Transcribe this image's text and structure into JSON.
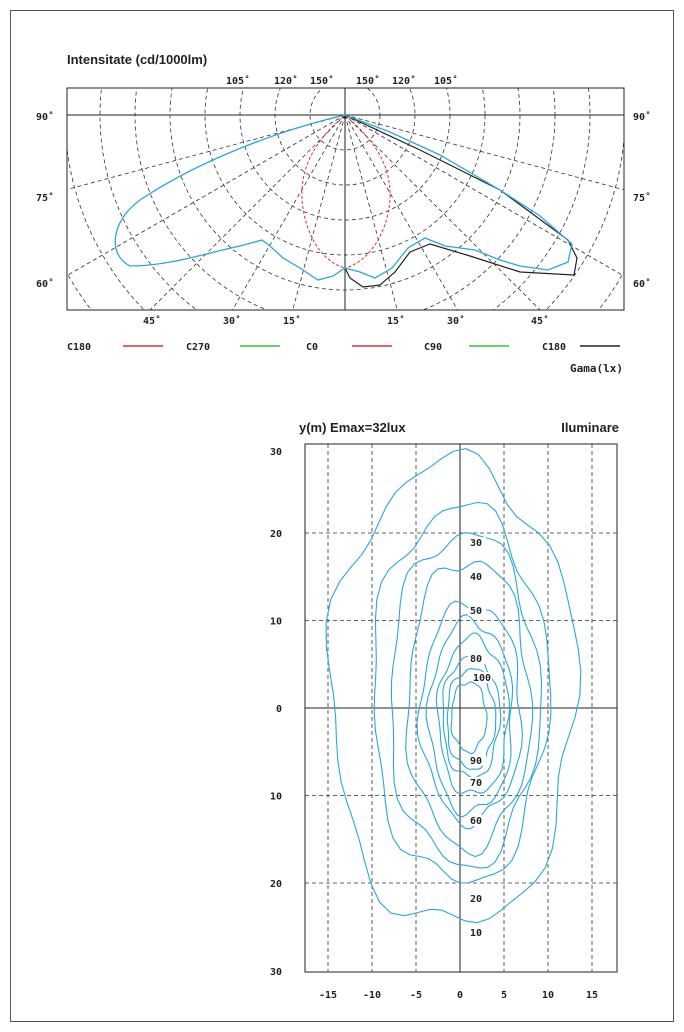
{
  "polar": {
    "title": "Intensitate (cd/1000lm)",
    "top_ticks": [
      "105˚",
      "120˚",
      "150˚",
      "150˚",
      "120˚",
      "105˚"
    ],
    "side_ticks": [
      "90˚",
      "75˚",
      "60˚"
    ],
    "bottom_ticks": [
      "45˚",
      "30˚",
      "15˚",
      "15˚",
      "30˚",
      "45˚"
    ],
    "legend": [
      {
        "name": "C180",
        "color": "#e03030"
      },
      {
        "name": "C270",
        "color": "#3cc03c"
      },
      {
        "name": "C0",
        "color": "#e03030"
      },
      {
        "name": "C90",
        "color": "#3cc03c"
      },
      {
        "name": "C180",
        "color": "#222222"
      }
    ],
    "legend_title": "Gama(lx)"
  },
  "chart_data": [
    {
      "type": "line",
      "title": "Intensitate (cd/1000lm)",
      "polar": true,
      "series": [
        {
          "name": "C0",
          "color": "#29a8d8",
          "r": [
            [
              60,
              0.97
            ],
            [
              62,
              0.99
            ],
            [
              64,
              0.98
            ],
            [
              66,
              0.94
            ],
            [
              68,
              0.86
            ],
            [
              70,
              0.77
            ],
            [
              72,
              0.66
            ],
            [
              75,
              0.53
            ],
            [
              78,
              0.42
            ],
            [
              81,
              0.31
            ],
            [
              84,
              0.2
            ],
            [
              87,
              0.09
            ],
            [
              90,
              0
            ]
          ]
        },
        {
          "name": "C180",
          "color": "#222222",
          "r": [
            [
              60,
              1.0
            ],
            [
              62,
              1.02
            ],
            [
              64,
              1.0
            ],
            [
              66,
              0.95
            ],
            [
              68,
              0.88
            ],
            [
              70,
              0.8
            ],
            [
              72,
              0.7
            ],
            [
              75,
              0.58
            ],
            [
              78,
              0.46
            ],
            [
              81,
              0.33
            ],
            [
              84,
              0.21
            ],
            [
              87,
              0.1
            ],
            [
              90,
              0
            ]
          ]
        }
      ]
    },
    {
      "type": "line",
      "title": "y(m) Emax=32lux",
      "subtitle": "Iluminare",
      "x_ticks": [
        -15,
        -10,
        -5,
        0,
        5,
        10,
        15
      ],
      "y_ticks": [
        30,
        20,
        10,
        0,
        10,
        20,
        30
      ],
      "xlim": [
        -15,
        15
      ],
      "ylim": [
        -30,
        30
      ],
      "contour_labels": [
        "30",
        "40",
        "50",
        "80",
        "100",
        "90",
        "70",
        "60",
        "20",
        "10"
      ],
      "series": [
        {
          "name": "10",
          "extent": [
            -14.8,
            13.2,
            -25,
            28
          ]
        },
        {
          "name": "20",
          "extent": [
            -10,
            10,
            -20,
            23
          ]
        },
        {
          "name": "30",
          "extent": [
            -8,
            9,
            -18,
            20
          ]
        },
        {
          "name": "40",
          "extent": [
            -6,
            8,
            -16,
            17
          ]
        },
        {
          "name": "50",
          "extent": [
            -4.5,
            7,
            -13,
            12
          ]
        },
        {
          "name": "60",
          "extent": [
            -3.5,
            6,
            -12,
            10
          ]
        },
        {
          "name": "70",
          "extent": [
            -2.5,
            5.5,
            -10,
            8
          ]
        },
        {
          "name": "80",
          "extent": [
            -2,
            4.5,
            -8,
            6
          ]
        },
        {
          "name": "90",
          "extent": [
            -1.5,
            4,
            -7,
            4.5
          ]
        },
        {
          "name": "100",
          "extent": [
            -1,
            3,
            -5,
            3
          ]
        }
      ]
    }
  ]
}
